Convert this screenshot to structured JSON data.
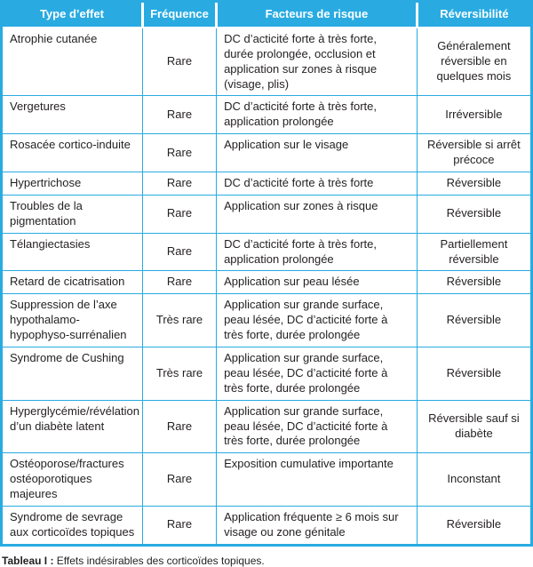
{
  "colors": {
    "header_bg": "#29ABE2",
    "border": "#29ABE2",
    "header_text": "#FFFFFF",
    "body_text": "#231F20"
  },
  "table": {
    "headers": [
      "Type d’effet",
      "Fréquence",
      "Facteurs de risque",
      "Réversibilité"
    ],
    "rows": [
      {
        "effet": "Atrophie cutanée",
        "frequence": "Rare",
        "facteurs": "DC d’acticité forte à très forte, durée prolongée, occlusion et application sur zones à risque (visage, plis)",
        "reversibilite": "Généralement réversible en quelques mois"
      },
      {
        "effet": "Vergetures",
        "frequence": "Rare",
        "facteurs": "DC d’acticité forte à très forte, application prolongée",
        "reversibilite": "Irréversible"
      },
      {
        "effet": "Rosacée cortico-induite",
        "frequence": "Rare",
        "facteurs": "Application sur le visage",
        "reversibilite": "Réversible si arrêt précoce"
      },
      {
        "effet": "Hypertrichose",
        "frequence": "Rare",
        "facteurs": "DC d’acticité forte à très forte",
        "reversibilite": "Réversible"
      },
      {
        "effet": "Troubles de la pigmentation",
        "frequence": "Rare",
        "facteurs": "Application sur zones à risque",
        "reversibilite": "Réversible"
      },
      {
        "effet": "Télangiectasies",
        "frequence": "Rare",
        "facteurs": "DC d’acticité forte à très forte, application prolongée",
        "reversibilite": "Partiellement réversible"
      },
      {
        "effet": "Retard de cicatrisation",
        "frequence": "Rare",
        "facteurs": "Application sur peau lésée",
        "reversibilite": "Réversible"
      },
      {
        "effet": "Suppression de l’axe hypothalamo-hypophyso-surrénalien",
        "frequence": "Très rare",
        "facteurs": "Application sur grande surface, peau lésée, DC d’acticité forte à très forte, durée prolongée",
        "reversibilite": "Réversible"
      },
      {
        "effet": "Syndrome de Cushing",
        "frequence": "Très rare",
        "facteurs": "Application sur grande surface, peau lésée, DC d’acticité forte à très forte, durée prolongée",
        "reversibilite": "Réversible"
      },
      {
        "effet": "Hyperglycémie/révélation d’un diabète latent",
        "frequence": "Rare",
        "facteurs": "Application sur grande surface, peau lésée, DC d’acticité forte à très forte, durée prolongée",
        "reversibilite": "Réversible sauf si diabète"
      },
      {
        "effet": "Ostéoporose/fractures ostéoporotiques majeures",
        "frequence": "Rare",
        "facteurs": "Exposition cumulative importante",
        "reversibilite": "Inconstant"
      },
      {
        "effet": "Syndrome de sevrage aux corticoïdes topiques",
        "frequence": "Rare",
        "facteurs": "Application fréquente ≥ 6 mois sur visage ou zone génitale",
        "reversibilite": "Réversible"
      }
    ],
    "caption_label": "Tableau I :",
    "caption_text": "Effets indésirables des corticoïdes topiques."
  }
}
